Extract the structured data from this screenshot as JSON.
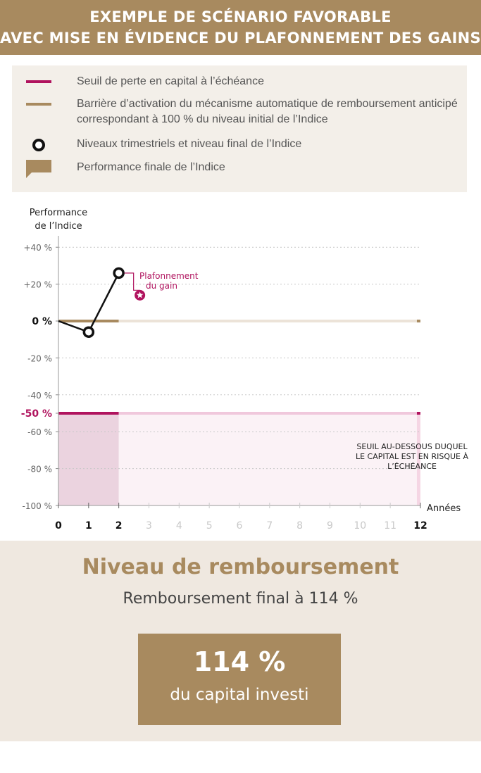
{
  "header": {
    "line1": "EXEMPLE DE SCÉNARIO FAVORABLE",
    "line2": "AVEC MISE EN ÉVIDENCE DU PLAFONNEMENT DES GAINS"
  },
  "legend": {
    "items": [
      {
        "symbol": "line",
        "color": "#b0135e",
        "text": "Seuil de perte en capital à l’échéance"
      },
      {
        "symbol": "line",
        "color": "#a88a5f",
        "text": "Barrière d’activation du mécanisme automatique de remboursement anticipé correspondant à 100 % du niveau initial de l’Indice"
      },
      {
        "symbol": "circle",
        "color": "#111111",
        "text": "Niveaux trimestriels et niveau final de l’Indice"
      },
      {
        "symbol": "flag",
        "color": "#a88a5f",
        "text": "Performance finale de l’Indice"
      }
    ]
  },
  "chart_data": {
    "type": "line",
    "ylabel_line1": "Performance",
    "ylabel_line2": "de l’Indice",
    "xlabel": "Années",
    "ylim": [
      -100,
      40
    ],
    "xlim": [
      0,
      12
    ],
    "y_ticks": [
      {
        "value": 40,
        "label": "+40 %",
        "emph": false
      },
      {
        "value": 20,
        "label": "+20 %",
        "emph": false
      },
      {
        "value": 0,
        "label": "0 %",
        "emph": "dark"
      },
      {
        "value": -20,
        "label": "-20 %",
        "emph": false
      },
      {
        "value": -40,
        "label": "-40 %",
        "emph": false
      },
      {
        "value": -50,
        "label": "-50 %",
        "emph": "red"
      },
      {
        "value": -60,
        "label": "-60 %",
        "emph": false
      },
      {
        "value": -80,
        "label": "-80 %",
        "emph": false
      },
      {
        "value": -100,
        "label": "-100 %",
        "emph": false
      }
    ],
    "x_ticks": [
      "0",
      "1",
      "2",
      "3",
      "4",
      "5",
      "6",
      "7",
      "8",
      "9",
      "10",
      "11",
      "12"
    ],
    "x_ticks_active_until": 2,
    "grid": true,
    "series": [
      {
        "x": [
          0,
          1,
          2
        ],
        "y": [
          0,
          -6,
          26
        ],
        "markers_at": [
          1,
          2
        ]
      }
    ],
    "barrier": {
      "value": 0,
      "active_until": 2,
      "color": "#a88a5f",
      "light_color": "#ece3d8"
    },
    "threshold": {
      "value": -50,
      "active_until": 2,
      "color": "#b0135e",
      "light_color": "#f0c8dc"
    },
    "annotation_cap": {
      "text_line1": "Plafonnement",
      "text_line2": "du gain",
      "color": "#b0135e",
      "star_value": 14,
      "star_x": 2.7
    },
    "annotation_risk": {
      "line1": "SEUIL AU-DESSOUS DUQUEL",
      "line2": "LE CAPITAL EST EN RISQUE À",
      "line3": "L’ÉCHÉANCE"
    }
  },
  "summary": {
    "title": "Niveau de remboursement",
    "subtitle": "Remboursement final à 114 %",
    "box_value": "114 %",
    "box_caption": "du capital investi"
  }
}
